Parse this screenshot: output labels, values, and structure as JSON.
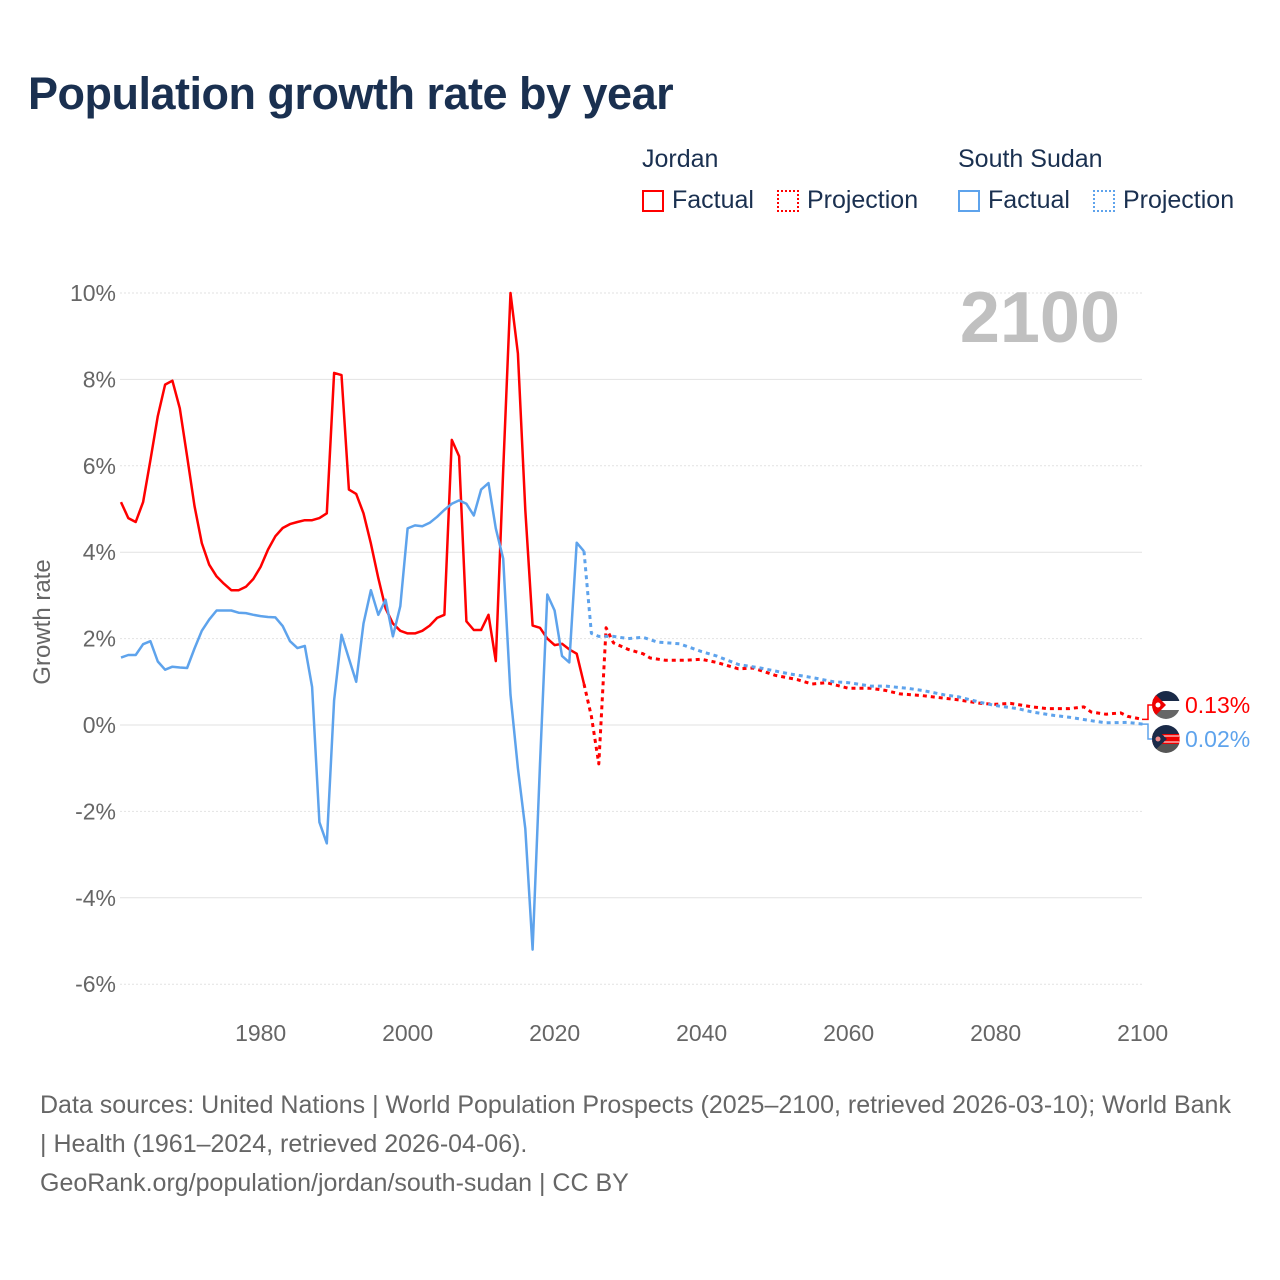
{
  "title": "Population growth rate by year",
  "legend": {
    "groups": [
      {
        "name": "Jordan",
        "factual": "Factual",
        "projection": "Projection",
        "color": "#ff0000"
      },
      {
        "name": "South Sudan",
        "factual": "Factual",
        "projection": "Projection",
        "color": "#5ea3ec"
      }
    ]
  },
  "year_watermark": "2100",
  "footer": {
    "sources": "Data sources: United Nations | World Population Prospects (2025–2100, retrieved 2026-03-10); World Bank | Health (1961–2024, retrieved 2026-04-06).",
    "credit": "GeoRank.org/population/jordan/south-sudan | CC BY"
  },
  "end_labels": [
    {
      "country": "Jordan",
      "value": "0.13%",
      "icon": "jordan-flag-icon"
    },
    {
      "country": "South Sudan",
      "value": "0.02%",
      "icon": "south-sudan-flag-icon"
    }
  ],
  "chart_data": {
    "type": "line",
    "title": "Population growth rate by year",
    "xlabel": "",
    "ylabel": "Growth rate",
    "xlim": [
      1961,
      2100
    ],
    "ylim": [
      -6.5,
      10.5
    ],
    "xticks": [
      1980,
      2000,
      2020,
      2040,
      2060,
      2080,
      2100
    ],
    "xtick_labels": [
      "1980",
      "2000",
      "2020",
      "2040",
      "2060",
      "2080",
      "2100"
    ],
    "yticks": [
      10,
      8,
      6,
      4,
      2,
      0,
      -2,
      -4,
      -6
    ],
    "ytick_labels": [
      "10%",
      "8%",
      "6%",
      "4%",
      "2%",
      "0%",
      "-2%",
      "-4%",
      "-6%"
    ],
    "grid": true,
    "series": [
      {
        "name": "Jordan",
        "kind": "Factual",
        "color": "#ff0000",
        "start_year": 1961,
        "values": [
          5.16,
          4.79,
          4.7,
          5.16,
          6.13,
          7.15,
          7.88,
          7.97,
          7.33,
          6.22,
          5.07,
          4.21,
          3.71,
          3.44,
          3.27,
          3.12,
          3.12,
          3.2,
          3.38,
          3.66,
          4.06,
          4.37,
          4.56,
          4.65,
          4.7,
          4.74,
          4.74,
          4.79,
          4.9,
          8.15,
          8.1,
          5.45,
          5.35,
          4.9,
          4.2,
          3.4,
          2.7,
          2.35,
          2.18,
          2.12,
          2.12,
          2.18,
          2.3,
          2.48,
          2.55,
          6.6,
          6.22,
          2.4,
          2.2,
          2.2,
          2.55,
          1.48,
          5.9,
          10.0,
          8.6,
          4.98,
          2.3,
          2.25,
          2.0,
          1.85,
          1.88,
          1.75,
          1.65,
          0.95
        ]
      },
      {
        "name": "Jordan",
        "kind": "Projection",
        "color": "#ff0000",
        "points": [
          [
            2024,
            0.95
          ],
          [
            2025,
            0.2
          ],
          [
            2026,
            -0.9
          ],
          [
            2027,
            2.25
          ],
          [
            2028,
            1.9
          ],
          [
            2030,
            1.75
          ],
          [
            2032,
            1.65
          ],
          [
            2033,
            1.55
          ],
          [
            2035,
            1.5
          ],
          [
            2038,
            1.5
          ],
          [
            2040,
            1.52
          ],
          [
            2042,
            1.45
          ],
          [
            2045,
            1.3
          ],
          [
            2047,
            1.32
          ],
          [
            2050,
            1.15
          ],
          [
            2053,
            1.05
          ],
          [
            2055,
            0.95
          ],
          [
            2057,
            0.98
          ],
          [
            2060,
            0.85
          ],
          [
            2063,
            0.85
          ],
          [
            2065,
            0.8
          ],
          [
            2067,
            0.72
          ],
          [
            2070,
            0.68
          ],
          [
            2073,
            0.62
          ],
          [
            2075,
            0.58
          ],
          [
            2078,
            0.5
          ],
          [
            2080,
            0.48
          ],
          [
            2082,
            0.5
          ],
          [
            2085,
            0.42
          ],
          [
            2087,
            0.38
          ],
          [
            2090,
            0.38
          ],
          [
            2092,
            0.42
          ],
          [
            2093,
            0.3
          ],
          [
            2095,
            0.25
          ],
          [
            2097,
            0.28
          ],
          [
            2098,
            0.2
          ],
          [
            2100,
            0.13
          ]
        ]
      },
      {
        "name": "South Sudan",
        "kind": "Factual",
        "color": "#5ea3ec",
        "start_year": 1961,
        "values": [
          1.56,
          1.62,
          1.62,
          1.87,
          1.94,
          1.47,
          1.28,
          1.35,
          1.33,
          1.32,
          1.77,
          2.18,
          2.44,
          2.65,
          2.65,
          2.65,
          2.6,
          2.59,
          2.55,
          2.52,
          2.5,
          2.49,
          2.29,
          1.94,
          1.78,
          1.83,
          0.88,
          -2.25,
          -2.74,
          0.57,
          2.09,
          1.54,
          1.0,
          2.35,
          3.12,
          2.55,
          2.9,
          2.05,
          2.75,
          4.55,
          4.62,
          4.6,
          4.68,
          4.82,
          4.98,
          5.12,
          5.2,
          5.12,
          4.85,
          5.45,
          5.6,
          4.55,
          3.85,
          0.7,
          -1.0,
          -2.4,
          -5.2,
          -0.9,
          3.02,
          2.65,
          1.6,
          1.45,
          4.22,
          4.02
        ]
      },
      {
        "name": "South Sudan",
        "kind": "Projection",
        "color": "#5ea3ec",
        "points": [
          [
            2024,
            4.02
          ],
          [
            2025,
            2.12
          ],
          [
            2026,
            2.05
          ],
          [
            2028,
            2.05
          ],
          [
            2030,
            2.0
          ],
          [
            2032,
            2.03
          ],
          [
            2034,
            1.92
          ],
          [
            2037,
            1.88
          ],
          [
            2040,
            1.7
          ],
          [
            2042,
            1.6
          ],
          [
            2045,
            1.4
          ],
          [
            2048,
            1.32
          ],
          [
            2050,
            1.25
          ],
          [
            2052,
            1.18
          ],
          [
            2055,
            1.1
          ],
          [
            2058,
            1.0
          ],
          [
            2060,
            0.98
          ],
          [
            2063,
            0.9
          ],
          [
            2065,
            0.9
          ],
          [
            2068,
            0.85
          ],
          [
            2070,
            0.8
          ],
          [
            2073,
            0.7
          ],
          [
            2075,
            0.65
          ],
          [
            2078,
            0.52
          ],
          [
            2080,
            0.45
          ],
          [
            2083,
            0.38
          ],
          [
            2085,
            0.3
          ],
          [
            2088,
            0.22
          ],
          [
            2090,
            0.18
          ],
          [
            2093,
            0.1
          ],
          [
            2095,
            0.05
          ],
          [
            2098,
            0.06
          ],
          [
            2100,
            0.02
          ]
        ]
      }
    ]
  }
}
